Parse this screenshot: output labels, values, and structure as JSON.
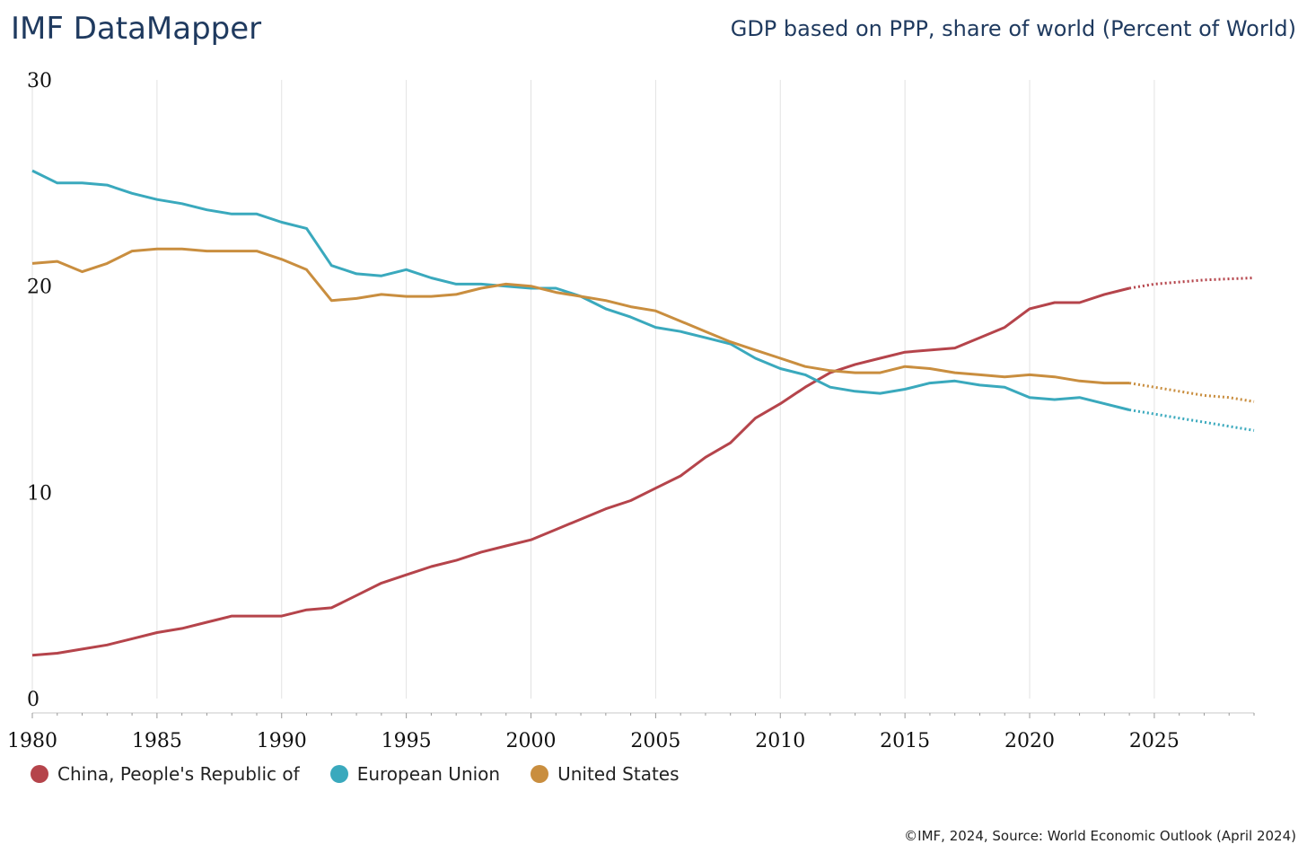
{
  "header": {
    "brand": "IMF DataMapper",
    "title": "GDP based on PPP, share of world (Percent of World)"
  },
  "footer": {
    "source": "©IMF, 2024, Source: World Economic Outlook (April 2024)"
  },
  "chart_data": {
    "type": "line",
    "title": "GDP based on PPP, share of world (Percent of World)",
    "ylim": [
      0,
      30
    ],
    "xlim": [
      1980,
      2029
    ],
    "y_ticks": [
      "0",
      "10",
      "20",
      "30"
    ],
    "x_ticks": [
      "1980",
      "1985",
      "1990",
      "1995",
      "2000",
      "2005",
      "2010",
      "2015",
      "2020",
      "2025"
    ],
    "grid": "vertical",
    "legend": "bottom-left",
    "forecast_from": 2024,
    "x": [
      1980,
      1981,
      1982,
      1983,
      1984,
      1985,
      1986,
      1987,
      1988,
      1989,
      1990,
      1991,
      1992,
      1993,
      1994,
      1995,
      1996,
      1997,
      1998,
      1999,
      2000,
      2001,
      2002,
      2003,
      2004,
      2005,
      2006,
      2007,
      2008,
      2009,
      2010,
      2011,
      2012,
      2013,
      2014,
      2015,
      2016,
      2017,
      2018,
      2019,
      2020,
      2021,
      2022,
      2023,
      2024,
      2025,
      2026,
      2027,
      2028,
      2029
    ],
    "series": [
      {
        "name": "China, People's Republic of",
        "color": "#b5444b",
        "values": [
          2.1,
          2.2,
          2.4,
          2.6,
          2.9,
          3.2,
          3.4,
          3.7,
          4.0,
          4.0,
          4.0,
          4.3,
          4.4,
          5.0,
          5.6,
          6.0,
          6.4,
          6.7,
          7.1,
          7.4,
          7.7,
          8.2,
          8.7,
          9.2,
          9.6,
          10.2,
          10.8,
          11.7,
          12.4,
          13.6,
          14.3,
          15.1,
          15.8,
          16.2,
          16.5,
          16.8,
          16.9,
          17.0,
          17.5,
          18.0,
          18.9,
          19.2,
          19.2,
          19.6,
          19.9,
          20.1,
          20.2,
          20.3,
          20.35,
          20.4
        ]
      },
      {
        "name": "European Union",
        "color": "#3aa9bd",
        "values": [
          25.6,
          25.0,
          25.0,
          24.9,
          24.5,
          24.2,
          24.0,
          23.7,
          23.5,
          23.5,
          23.1,
          22.8,
          21.0,
          20.6,
          20.5,
          20.8,
          20.4,
          20.1,
          20.1,
          20.0,
          19.9,
          19.9,
          19.5,
          18.9,
          18.5,
          18.0,
          17.8,
          17.5,
          17.2,
          16.5,
          16.0,
          15.7,
          15.1,
          14.9,
          14.8,
          15.0,
          15.3,
          15.4,
          15.2,
          15.1,
          14.6,
          14.5,
          14.6,
          14.3,
          14.0,
          13.8,
          13.6,
          13.4,
          13.2,
          13.0
        ]
      },
      {
        "name": "United States",
        "color": "#c98e3f",
        "values": [
          21.1,
          21.2,
          20.7,
          21.1,
          21.7,
          21.8,
          21.8,
          21.7,
          21.7,
          21.7,
          21.3,
          20.8,
          19.3,
          19.4,
          19.6,
          19.5,
          19.5,
          19.6,
          19.9,
          20.1,
          20.0,
          19.7,
          19.5,
          19.3,
          19.0,
          18.8,
          18.3,
          17.8,
          17.3,
          16.9,
          16.5,
          16.1,
          15.9,
          15.8,
          15.8,
          16.1,
          16.0,
          15.8,
          15.7,
          15.6,
          15.7,
          15.6,
          15.4,
          15.3,
          15.3,
          15.1,
          14.9,
          14.7,
          14.6,
          14.4
        ]
      }
    ]
  }
}
